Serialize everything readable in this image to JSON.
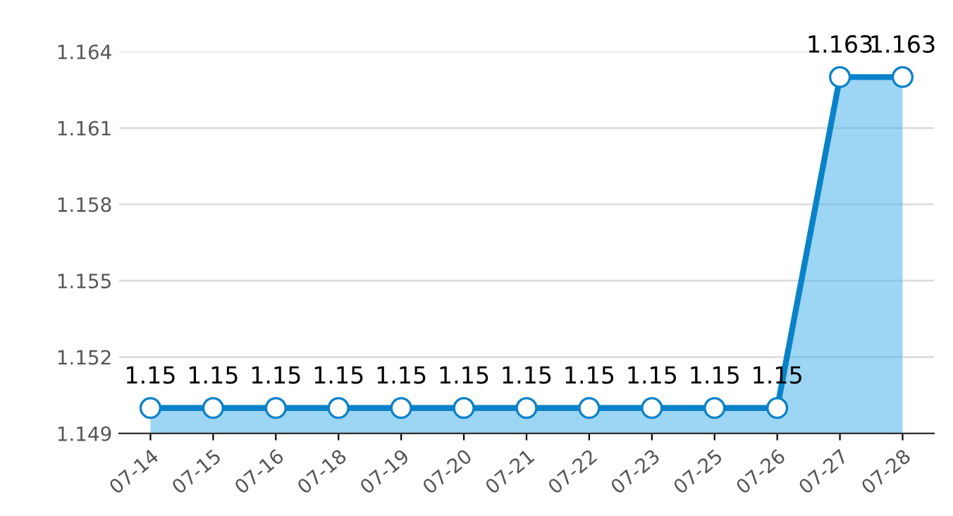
{
  "chart_data": {
    "type": "area",
    "categories": [
      "07-14",
      "07-15",
      "07-16",
      "07-18",
      "07-19",
      "07-20",
      "07-21",
      "07-22",
      "07-23",
      "07-25",
      "07-26",
      "07-27",
      "07-28"
    ],
    "series": [
      {
        "color": "#0a82c8",
        "values": [
          1.15,
          1.15,
          1.15,
          1.15,
          1.15,
          1.15,
          1.15,
          1.15,
          1.15,
          1.15,
          1.15,
          1.163,
          1.163
        ]
      }
    ],
    "ylim": [
      1.149,
      1.164
    ],
    "yticks": [
      1.149,
      1.152,
      1.155,
      1.158,
      1.161,
      1.164
    ],
    "grid": "y",
    "marker": "circle",
    "data_labels": true
  }
}
